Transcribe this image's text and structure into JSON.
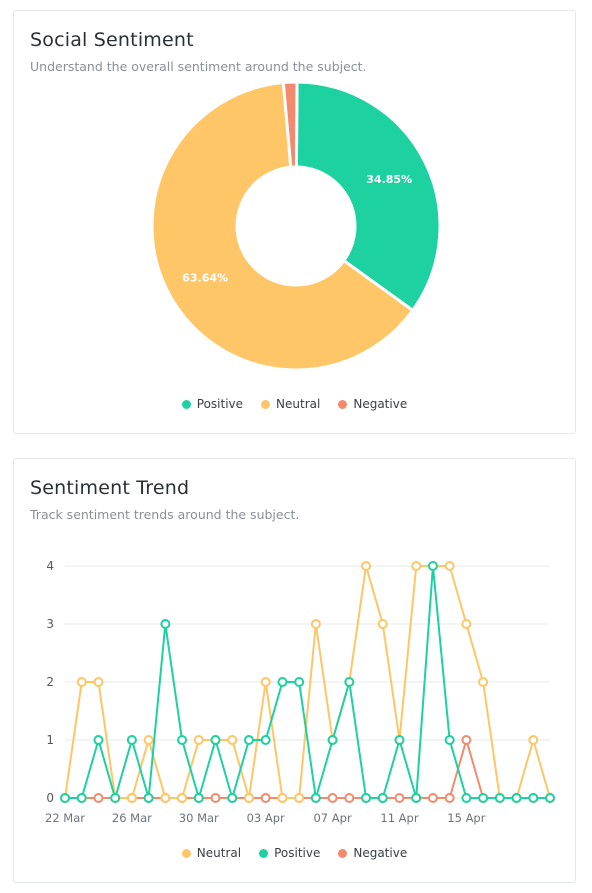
{
  "colors": {
    "positive": "#1dd1a1",
    "neutral": "#fec666",
    "negative": "#f28b6d"
  },
  "sentiment_card": {
    "title": "Social Sentiment",
    "subtitle": "Understand the overall sentiment around the subject."
  },
  "trend_card": {
    "title": "Sentiment Trend",
    "subtitle": "Track sentiment trends around the subject."
  },
  "chart_data": [
    {
      "type": "pie",
      "donut": true,
      "labels": [
        "Positive",
        "Neutral",
        "Negative"
      ],
      "values": [
        34.85,
        63.64,
        1.51
      ],
      "data_labels": [
        "34.85%",
        "63.64%",
        ""
      ],
      "legend_placement": "bottom-center"
    },
    {
      "type": "line",
      "x": [
        "22 Mar",
        "23 Mar",
        "24 Mar",
        "25 Mar",
        "26 Mar",
        "27 Mar",
        "28 Mar",
        "29 Mar",
        "30 Mar",
        "31 Mar",
        "01 Apr",
        "02 Apr",
        "03 Apr",
        "04 Apr",
        "05 Apr",
        "06 Apr",
        "07 Apr",
        "08 Apr",
        "09 Apr",
        "10 Apr",
        "11 Apr",
        "12 Apr",
        "13 Apr",
        "14 Apr",
        "15 Apr",
        "16 Apr",
        "17 Apr",
        "18 Apr",
        "19 Apr",
        "20 Apr"
      ],
      "x_tick_labels": [
        "22 Mar",
        "26 Mar",
        "30 Mar",
        "03 Apr",
        "07 Apr",
        "11 Apr",
        "15 Apr"
      ],
      "y_ticks": [
        0,
        1,
        2,
        3,
        4
      ],
      "ylim": [
        0,
        4
      ],
      "grid": true,
      "legend_placement": "bottom-center",
      "series": [
        {
          "name": "Neutral",
          "values": [
            0,
            2,
            2,
            0,
            0,
            1,
            0,
            0,
            1,
            1,
            1,
            0,
            2,
            0,
            0,
            3,
            1,
            2,
            4,
            3,
            1,
            4,
            4,
            4,
            3,
            2,
            0,
            0,
            1,
            0
          ]
        },
        {
          "name": "Positive",
          "values": [
            0,
            0,
            1,
            0,
            1,
            0,
            3,
            1,
            0,
            1,
            0,
            1,
            1,
            2,
            2,
            0,
            1,
            2,
            0,
            0,
            1,
            0,
            4,
            1,
            0,
            0,
            0,
            0,
            0,
            0
          ]
        },
        {
          "name": "Negative",
          "values": [
            0,
            0,
            0,
            0,
            0,
            0,
            0,
            0,
            0,
            0,
            0,
            0,
            0,
            0,
            0,
            0,
            0,
            0,
            0,
            0,
            0,
            0,
            0,
            0,
            1,
            0,
            0,
            0,
            0,
            0
          ]
        }
      ]
    }
  ]
}
